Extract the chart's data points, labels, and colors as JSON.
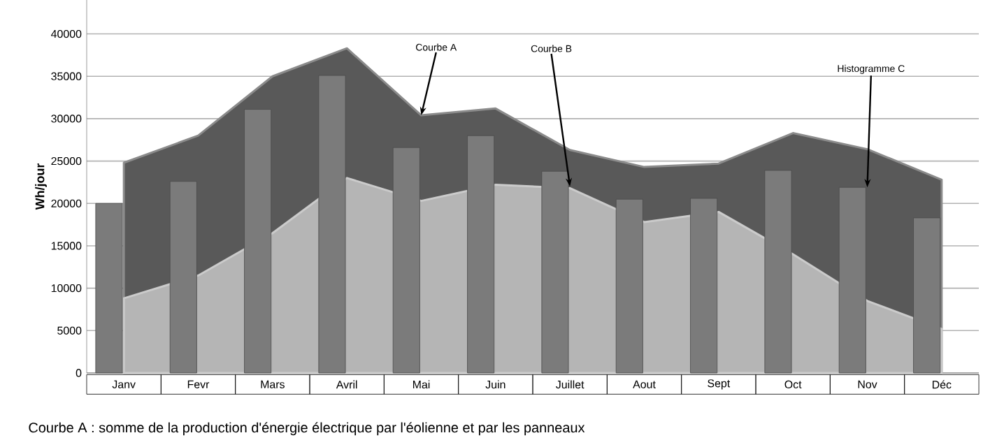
{
  "chart_data": {
    "type": "area",
    "ylabel": "Wh/jour",
    "categories": [
      "Janv",
      "Fevr",
      "Mars",
      "Avril",
      "Mai",
      "Juin",
      "Juillet",
      "Aout",
      "Sept",
      "Oct",
      "Nov",
      "Déc"
    ],
    "series": [
      {
        "color": "#595959",
        "values": [
          24800,
          28000,
          35000,
          38300,
          30400,
          31200,
          26300,
          24300,
          24700,
          28300,
          26400,
          22800
        ]
      },
      {
        "color": "#b5b5b5",
        "values": [
          8800,
          11500,
          16500,
          23000,
          20300,
          22200,
          21800,
          17800,
          19000,
          14000,
          8500,
          5200
        ]
      },
      {
        "type": "bar",
        "color": "#7b7b7b",
        "values": [
          20000,
          22600,
          31100,
          35100,
          26600,
          28000,
          23800,
          20500,
          20600,
          23900,
          21900,
          18300
        ]
      }
    ],
    "ylim": [
      0,
      44000
    ],
    "yticks": [
      0,
      5000,
      10000,
      15000,
      20000,
      25000,
      30000,
      35000,
      40000
    ],
    "grid": "y",
    "annotations": [
      {
        "text": "Courbe A",
        "x": "Mai",
        "y": 30400
      },
      {
        "text": "Courbe B",
        "x": "Juillet",
        "y": 22000
      },
      {
        "text": "Histogramme C",
        "x": "Nov",
        "y": 21900
      },
      "Courbe A : somme de la production d'énergie électrique par l'éolienne et par les panneaux"
    ]
  }
}
